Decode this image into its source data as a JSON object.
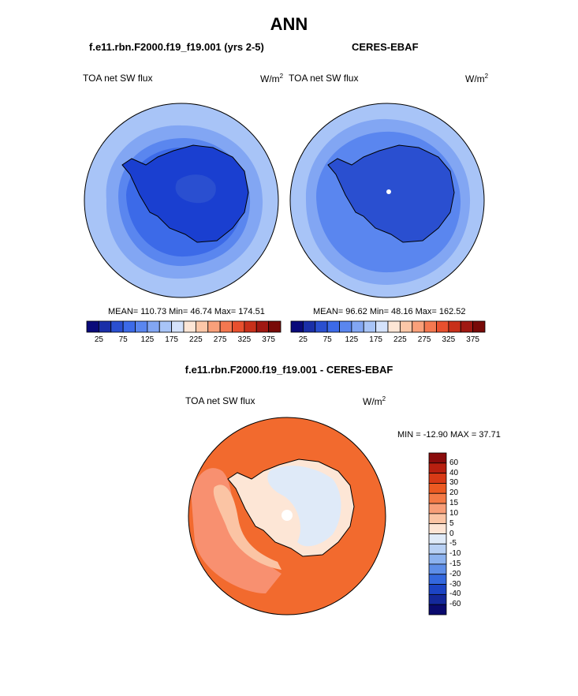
{
  "season": "ANN",
  "top_left": {
    "case": "f.e11.rbn.F2000.f19_f19.001 (yrs 2-5)",
    "variable": "TOA net SW flux",
    "units": "W/m",
    "units_exp": "2",
    "stats": "MEAN= 110.73  Min=  46.74  Max= 174.51"
  },
  "top_right": {
    "case": "CERES-EBAF",
    "variable": "TOA net SW flux",
    "units": "W/m",
    "units_exp": "2",
    "stats": "MEAN=  96.62  Min=  48.16  Max= 162.52"
  },
  "bottom": {
    "case": "f.e11.rbn.F2000.f19_f19.001 - CERES-EBAF",
    "variable": "TOA net SW flux",
    "units": "W/m",
    "units_exp": "2",
    "stats": "MIN = -12.90 MAX =  37.71"
  },
  "colorbar_top": {
    "ticks": [
      "25",
      "75",
      "125",
      "175",
      "225",
      "275",
      "325",
      "375"
    ],
    "colors": [
      "#0a0a7a",
      "#1a2fa8",
      "#2a4fd0",
      "#3c6ae8",
      "#5a86ef",
      "#82a6f3",
      "#a8c4f7",
      "#d4e2fb",
      "#fde6d6",
      "#fcc7a8",
      "#f9a07a",
      "#f47850",
      "#e8502e",
      "#c8301a",
      "#a01812",
      "#780a08"
    ]
  },
  "colorbar_diff": {
    "ticks": [
      "60",
      "40",
      "30",
      "20",
      "15",
      "10",
      "5",
      "0",
      "-5",
      "-10",
      "-15",
      "-20",
      "-30",
      "-40",
      "-60"
    ],
    "colors": [
      "#8a0c0c",
      "#b82010",
      "#d83a16",
      "#ec5a22",
      "#f47a46",
      "#f89e78",
      "#fbc4a4",
      "#fde4d4",
      "#dfeaf8",
      "#b8d0f4",
      "#8cb2ef",
      "#5e8ee8",
      "#3468de",
      "#1c44c4",
      "#14289a",
      "#0a0a6e"
    ]
  },
  "map_colors": {
    "ocean_far": "#a8c4f7",
    "ocean_mid": "#82a6f3",
    "ocean_near": "#5a86ef",
    "ice_ring": "#3c6ae8",
    "continent": "#1a3fd0",
    "interior": "#2a4fd0",
    "diff_far": "#f26a2e",
    "diff_mid": "#f89070",
    "diff_near": "#fbc4a4",
    "diff_cont": "#fde6d6",
    "diff_ice": "#dfeaf8"
  }
}
